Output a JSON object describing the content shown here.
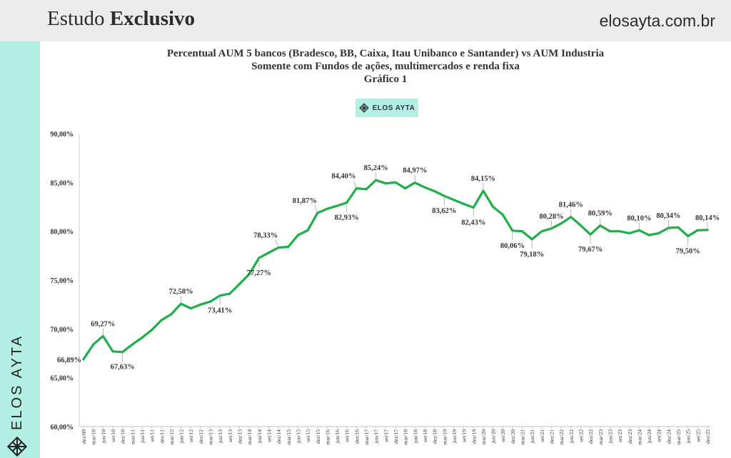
{
  "header": {
    "brand_light": "Estudo ",
    "brand_bold": "Exclusivo",
    "site": "elosayta.com.br"
  },
  "sidebar": {
    "brand_vertical": "ELOS AYTA",
    "icon": "elos-ayta-logo-icon"
  },
  "badge": {
    "label": "ELOS AYTA",
    "icon": "elos-ayta-logo-icon"
  },
  "colors": {
    "line": "#1fae4a",
    "mint": "#b4efe4",
    "header_bg": "#ececec"
  },
  "chart_data": {
    "type": "line",
    "title": "Percentual  AUM 5 bancos (Bradesco, BB, Caixa, Itau Unibanco e Santander) vs AUM Industria",
    "subtitle": "Somente com Fundos de ações, multimercados e renda fixa",
    "caption": "Gráfico 1",
    "ylim": [
      60,
      90
    ],
    "yticks": [
      60,
      65,
      70,
      75,
      80,
      85,
      90
    ],
    "ytick_labels": [
      "60,00%",
      "65,00%",
      "70,00%",
      "75,00%",
      "80,00%",
      "85,00%",
      "90,00%"
    ],
    "x_labels": [
      "dez/09",
      "mar/10",
      "jun/10",
      "set/10",
      "dez/10",
      "mar/11",
      "jun/11",
      "set/11",
      "dez/11",
      "mar/12",
      "jun/12",
      "set/12",
      "dez/12",
      "mar/13",
      "jun/13",
      "set/13",
      "dez/13",
      "mar/14",
      "jun/14",
      "set/14",
      "dez/14",
      "mar/15",
      "jun/15",
      "set/15",
      "dez/15",
      "mar/16",
      "jun/16",
      "set/16",
      "dez/16",
      "mar/17",
      "jun/17",
      "set/17",
      "dez/17",
      "mar/18",
      "jun/18",
      "set/18",
      "dez/18",
      "mar/19",
      "jun/19",
      "set/19",
      "dez/19",
      "mar/20",
      "jun/20",
      "set/20",
      "dez/20",
      "mar/21",
      "jun/21",
      "set/21",
      "dez/21",
      "mar/22",
      "jun/22",
      "set/22",
      "dez/22",
      "mar/23",
      "jun/23",
      "set/23",
      "dez/23",
      "mar/24",
      "jun/24",
      "set/24",
      "dez/24",
      "mar/25",
      "jun/25",
      "set/25",
      "dez/25"
    ],
    "values": [
      66.89,
      68.4,
      69.27,
      67.7,
      67.63,
      68.4,
      69.1,
      69.9,
      70.9,
      71.5,
      72.58,
      72.1,
      72.5,
      72.8,
      73.41,
      73.6,
      74.6,
      75.6,
      77.27,
      77.8,
      78.33,
      78.4,
      79.6,
      80.1,
      81.87,
      82.3,
      82.6,
      82.93,
      84.4,
      84.3,
      85.24,
      84.9,
      85.0,
      84.4,
      84.97,
      84.5,
      84.1,
      83.62,
      83.2,
      82.8,
      82.43,
      84.15,
      82.5,
      81.7,
      80.06,
      80.0,
      79.18,
      80.0,
      80.28,
      80.8,
      81.46,
      80.6,
      79.67,
      80.59,
      80.0,
      80.0,
      79.8,
      80.1,
      79.6,
      79.8,
      80.34,
      80.4,
      79.5,
      80.1,
      80.14
    ],
    "data_labels": [
      {
        "index": 0,
        "text": "66,89%",
        "pos": "left"
      },
      {
        "index": 2,
        "text": "69,27%",
        "pos": "above"
      },
      {
        "index": 4,
        "text": "67,63%",
        "pos": "below"
      },
      {
        "index": 10,
        "text": "72,58%",
        "pos": "above"
      },
      {
        "index": 14,
        "text": "73,41%",
        "pos": "below"
      },
      {
        "index": 18,
        "text": "77,27%",
        "pos": "below"
      },
      {
        "index": 20,
        "text": "78,33%",
        "pos": "above-left"
      },
      {
        "index": 24,
        "text": "81,87%",
        "pos": "above-left"
      },
      {
        "index": 27,
        "text": "82,93%",
        "pos": "below"
      },
      {
        "index": 28,
        "text": "84,40%",
        "pos": "above-left"
      },
      {
        "index": 30,
        "text": "85,24%",
        "pos": "above"
      },
      {
        "index": 34,
        "text": "84,97%",
        "pos": "above"
      },
      {
        "index": 37,
        "text": "83,62%",
        "pos": "below"
      },
      {
        "index": 40,
        "text": "82,43%",
        "pos": "below"
      },
      {
        "index": 41,
        "text": "84,15%",
        "pos": "above"
      },
      {
        "index": 44,
        "text": "80,06%",
        "pos": "below"
      },
      {
        "index": 46,
        "text": "79,18%",
        "pos": "below"
      },
      {
        "index": 48,
        "text": "80,28%",
        "pos": "above"
      },
      {
        "index": 50,
        "text": "81,46%",
        "pos": "above"
      },
      {
        "index": 52,
        "text": "79,67%",
        "pos": "below"
      },
      {
        "index": 53,
        "text": "80,59%",
        "pos": "above"
      },
      {
        "index": 57,
        "text": "80,10%",
        "pos": "above"
      },
      {
        "index": 60,
        "text": "80,34%",
        "pos": "above"
      },
      {
        "index": 62,
        "text": "79,50%",
        "pos": "below"
      },
      {
        "index": 64,
        "text": "80,14%",
        "pos": "above"
      }
    ]
  }
}
